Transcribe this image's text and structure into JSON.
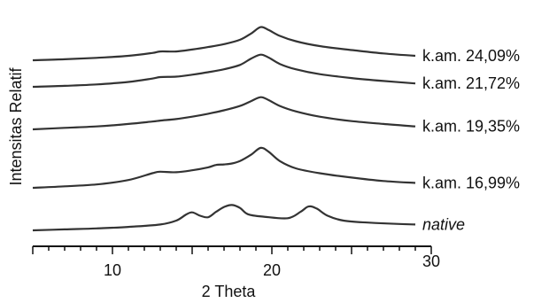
{
  "chart_data": {
    "type": "line",
    "title": "",
    "xlabel": "2 Theta",
    "ylabel": "Intensitas Relatif",
    "xlim": [
      5,
      30
    ],
    "x_ticks": [
      10,
      20,
      30
    ],
    "grid": false,
    "legend": "inline-right",
    "series": [
      {
        "name": "k.am. 24,09%",
        "italic": false,
        "points": [
          [
            5,
            0.0
          ],
          [
            7,
            0.02
          ],
          [
            9,
            0.05
          ],
          [
            11,
            0.09
          ],
          [
            12.5,
            0.15
          ],
          [
            13,
            0.18
          ],
          [
            14,
            0.18
          ],
          [
            15,
            0.22
          ],
          [
            16,
            0.27
          ],
          [
            17,
            0.33
          ],
          [
            18,
            0.42
          ],
          [
            18.7,
            0.55
          ],
          [
            19.3,
            0.68
          ],
          [
            19.8,
            0.62
          ],
          [
            20.5,
            0.5
          ],
          [
            21.5,
            0.39
          ],
          [
            23,
            0.29
          ],
          [
            25,
            0.21
          ],
          [
            27,
            0.14
          ],
          [
            29,
            0.09
          ]
        ]
      },
      {
        "name": "k.am. 21,72%",
        "italic": false,
        "points": [
          [
            5,
            0.0
          ],
          [
            7,
            0.02
          ],
          [
            9,
            0.05
          ],
          [
            11,
            0.1
          ],
          [
            12.5,
            0.17
          ],
          [
            13,
            0.2
          ],
          [
            14,
            0.21
          ],
          [
            15,
            0.25
          ],
          [
            16,
            0.3
          ],
          [
            17,
            0.36
          ],
          [
            18,
            0.45
          ],
          [
            18.7,
            0.58
          ],
          [
            19.3,
            0.66
          ],
          [
            19.8,
            0.6
          ],
          [
            20.5,
            0.47
          ],
          [
            21.5,
            0.36
          ],
          [
            23,
            0.26
          ],
          [
            25,
            0.18
          ],
          [
            27,
            0.12
          ],
          [
            29,
            0.07
          ]
        ]
      },
      {
        "name": "k.am. 19,35%",
        "italic": false,
        "points": [
          [
            5,
            0.0
          ],
          [
            7,
            0.03
          ],
          [
            9,
            0.06
          ],
          [
            11,
            0.11
          ],
          [
            12.5,
            0.16
          ],
          [
            13,
            0.18
          ],
          [
            14,
            0.21
          ],
          [
            15,
            0.26
          ],
          [
            16,
            0.32
          ],
          [
            17,
            0.39
          ],
          [
            18,
            0.48
          ],
          [
            18.7,
            0.58
          ],
          [
            19.3,
            0.66
          ],
          [
            19.8,
            0.6
          ],
          [
            20.5,
            0.48
          ],
          [
            21.5,
            0.37
          ],
          [
            23,
            0.26
          ],
          [
            25,
            0.17
          ],
          [
            27,
            0.11
          ],
          [
            29,
            0.06
          ]
        ]
      },
      {
        "name": "k.am. 16,99%",
        "italic": false,
        "points": [
          [
            5,
            0.0
          ],
          [
            7,
            0.03
          ],
          [
            9,
            0.07
          ],
          [
            11,
            0.16
          ],
          [
            12.5,
            0.3
          ],
          [
            13,
            0.33
          ],
          [
            14,
            0.32
          ],
          [
            15,
            0.36
          ],
          [
            16,
            0.42
          ],
          [
            16.5,
            0.47
          ],
          [
            17,
            0.48
          ],
          [
            17.5,
            0.5
          ],
          [
            18,
            0.55
          ],
          [
            18.7,
            0.68
          ],
          [
            19.3,
            0.82
          ],
          [
            19.8,
            0.74
          ],
          [
            20.5,
            0.55
          ],
          [
            21.5,
            0.4
          ],
          [
            23,
            0.3
          ],
          [
            25,
            0.21
          ],
          [
            27,
            0.14
          ],
          [
            29,
            0.1
          ]
        ]
      },
      {
        "name": "native",
        "italic": true,
        "points": [
          [
            5,
            0.0
          ],
          [
            7,
            0.02
          ],
          [
            9,
            0.04
          ],
          [
            11,
            0.07
          ],
          [
            13,
            0.12
          ],
          [
            14,
            0.2
          ],
          [
            14.6,
            0.32
          ],
          [
            15,
            0.37
          ],
          [
            15.5,
            0.3
          ],
          [
            16,
            0.27
          ],
          [
            16.5,
            0.38
          ],
          [
            17,
            0.48
          ],
          [
            17.5,
            0.52
          ],
          [
            18,
            0.46
          ],
          [
            18.5,
            0.33
          ],
          [
            19.5,
            0.28
          ],
          [
            21,
            0.25
          ],
          [
            21.8,
            0.38
          ],
          [
            22.3,
            0.49
          ],
          [
            22.8,
            0.45
          ],
          [
            23.5,
            0.3
          ],
          [
            24.5,
            0.2
          ],
          [
            26,
            0.16
          ],
          [
            28,
            0.13
          ],
          [
            29,
            0.12
          ]
        ]
      }
    ]
  }
}
